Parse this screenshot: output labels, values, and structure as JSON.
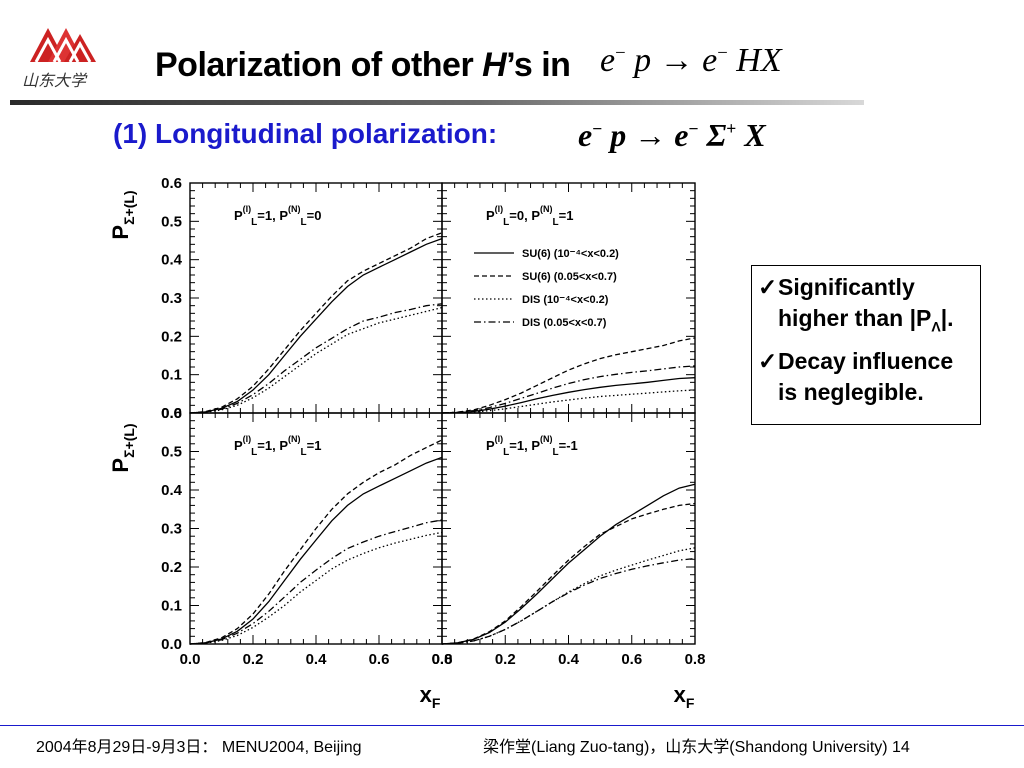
{
  "header": {
    "title_prefix": "Polarization of other ",
    "title_italic": "H",
    "title_suffix": "’s  in",
    "reaction_main": {
      "lhs": "e",
      "lhs_sup": "−",
      "p": " p → e",
      "rhs_sup": "−",
      "rest": " HX"
    },
    "logo_text": "山东大学"
  },
  "subtitle": "(1) Longitudinal polarization:",
  "reaction_sub": {
    "a": "e",
    "a_sup": "−",
    "b": " p → e",
    "b_sup": "−",
    "c": " Σ",
    "c_sup": "+",
    "d": " X"
  },
  "notes": [
    {
      "check": "✓",
      "text": "Significantly higher than |P",
      "sub": "Λ",
      "after": "|."
    },
    {
      "check": "✓",
      "text": "Decay influence is neglegible.",
      "sub": "",
      "after": ""
    }
  ],
  "footer": {
    "left": "2004年8月29日-9月3日：  MENU2004, Beijing",
    "right": "梁作堂(Liang Zuo-tang)，山东大学(Shandong University) 14"
  },
  "colors": {
    "subtitle": "#1a1acc",
    "footer_rule": "#1a1acc",
    "logo_red": "#cc2222"
  },
  "chart_data": {
    "type": "line",
    "ylabel": "P",
    "ylabel_sub": "Σ+(L)",
    "xlabel": "x",
    "xlabel_sub": "F",
    "ylim": [
      0,
      0.6
    ],
    "yticks": [
      "0.0",
      "0.1",
      "0.2",
      "0.3",
      "0.4",
      "0.5",
      "0.6"
    ],
    "xlim": [
      0,
      0.8
    ],
    "xticks": [
      "0.0",
      "0.2",
      "0.4",
      "0.6",
      "0.8"
    ],
    "x": [
      0.0,
      0.05,
      0.1,
      0.15,
      0.2,
      0.25,
      0.3,
      0.35,
      0.4,
      0.45,
      0.5,
      0.55,
      0.6,
      0.65,
      0.7,
      0.75,
      0.8
    ],
    "legend": [
      {
        "name": "SU(6) (10⁻⁴<x<0.2)",
        "style": "solid"
      },
      {
        "name": "SU(6) (0.05<x<0.7)",
        "style": "dashed"
      },
      {
        "name": "DIS   (10⁻⁴<x<0.2)",
        "style": "dotted"
      },
      {
        "name": "DIS  (0.05<x<0.7)",
        "style": "dashdot"
      }
    ],
    "panels": [
      {
        "label": "P(l)L=1, P(N)L=0",
        "label_html": [
          "P",
          "(l)",
          "L",
          "=1, P",
          "(N)",
          "L",
          "=0"
        ],
        "series": [
          {
            "style": "solid",
            "values": [
              0.0,
              0.003,
              0.012,
              0.03,
              0.06,
              0.1,
              0.15,
              0.2,
              0.245,
              0.29,
              0.33,
              0.36,
              0.38,
              0.4,
              0.42,
              0.44,
              0.455
            ]
          },
          {
            "style": "dashed",
            "values": [
              0.0,
              0.004,
              0.015,
              0.037,
              0.07,
              0.115,
              0.165,
              0.215,
              0.26,
              0.305,
              0.345,
              0.37,
              0.39,
              0.41,
              0.43,
              0.455,
              0.47
            ]
          },
          {
            "style": "dotted",
            "values": [
              0.0,
              0.002,
              0.008,
              0.02,
              0.04,
              0.065,
              0.095,
              0.125,
              0.155,
              0.18,
              0.205,
              0.22,
              0.235,
              0.245,
              0.255,
              0.265,
              0.275
            ]
          },
          {
            "style": "dashdot",
            "values": [
              0.0,
              0.003,
              0.01,
              0.025,
              0.048,
              0.077,
              0.11,
              0.14,
              0.17,
              0.195,
              0.22,
              0.24,
              0.25,
              0.262,
              0.27,
              0.28,
              0.285
            ]
          }
        ]
      },
      {
        "label": "P(l)L=0, P(N)L=1",
        "label_html": [
          "P",
          "(l)",
          "L",
          "=0, P",
          "(N)",
          "L",
          "=1"
        ],
        "series": [
          {
            "style": "solid",
            "values": [
              0.0,
              0.001,
              0.004,
              0.01,
              0.018,
              0.027,
              0.037,
              0.046,
              0.054,
              0.061,
              0.067,
              0.072,
              0.076,
              0.08,
              0.085,
              0.09,
              0.092
            ]
          },
          {
            "style": "dashed",
            "values": [
              0.0,
              0.002,
              0.008,
              0.02,
              0.035,
              0.052,
              0.072,
              0.092,
              0.112,
              0.128,
              0.142,
              0.152,
              0.16,
              0.168,
              0.176,
              0.188,
              0.196
            ]
          },
          {
            "style": "dotted",
            "values": [
              0.0,
              0.001,
              0.002,
              0.006,
              0.011,
              0.017,
              0.023,
              0.029,
              0.034,
              0.039,
              0.043,
              0.046,
              0.049,
              0.052,
              0.055,
              0.058,
              0.06
            ]
          },
          {
            "style": "dashdot",
            "values": [
              0.0,
              0.002,
              0.006,
              0.014,
              0.025,
              0.038,
              0.051,
              0.065,
              0.077,
              0.087,
              0.095,
              0.101,
              0.106,
              0.11,
              0.115,
              0.12,
              0.123
            ]
          }
        ]
      },
      {
        "label": "P(l)L=1, P(N)L=1",
        "label_html": [
          "P",
          "(l)",
          "L",
          "=1, P",
          "(N)",
          "L",
          "=1"
        ],
        "series": [
          {
            "style": "solid",
            "values": [
              0.0,
              0.003,
              0.013,
              0.033,
              0.065,
              0.11,
              0.165,
              0.22,
              0.27,
              0.32,
              0.36,
              0.39,
              0.41,
              0.43,
              0.45,
              0.47,
              0.485
            ]
          },
          {
            "style": "dashed",
            "values": [
              0.0,
              0.004,
              0.016,
              0.04,
              0.078,
              0.13,
              0.19,
              0.245,
              0.3,
              0.35,
              0.39,
              0.42,
              0.445,
              0.465,
              0.49,
              0.51,
              0.53
            ]
          },
          {
            "style": "dotted",
            "values": [
              0.0,
              0.002,
              0.009,
              0.022,
              0.043,
              0.07,
              0.1,
              0.135,
              0.165,
              0.195,
              0.218,
              0.235,
              0.25,
              0.262,
              0.272,
              0.282,
              0.29
            ]
          },
          {
            "style": "dashdot",
            "values": [
              0.0,
              0.003,
              0.011,
              0.028,
              0.053,
              0.085,
              0.122,
              0.16,
              0.192,
              0.222,
              0.248,
              0.265,
              0.28,
              0.292,
              0.303,
              0.315,
              0.322
            ]
          }
        ]
      },
      {
        "label": "P(l)L=1, P(N)L=-1",
        "label_html": [
          "P",
          "(l)",
          "L",
          "=1, P",
          "(N)",
          "L",
          "=-1"
        ],
        "series": [
          {
            "style": "solid",
            "values": [
              0.0,
              0.003,
              0.012,
              0.03,
              0.057,
              0.092,
              0.13,
              0.17,
              0.21,
              0.245,
              0.28,
              0.31,
              0.335,
              0.36,
              0.385,
              0.405,
              0.415
            ]
          },
          {
            "style": "dashed",
            "values": [
              0.0,
              0.003,
              0.013,
              0.032,
              0.06,
              0.097,
              0.137,
              0.178,
              0.218,
              0.253,
              0.285,
              0.305,
              0.325,
              0.338,
              0.35,
              0.36,
              0.365
            ]
          },
          {
            "style": "dotted",
            "values": [
              0.0,
              0.002,
              0.008,
              0.02,
              0.038,
              0.06,
              0.085,
              0.11,
              0.135,
              0.157,
              0.177,
              0.192,
              0.205,
              0.218,
              0.23,
              0.242,
              0.25
            ]
          },
          {
            "style": "dashdot",
            "values": [
              0.0,
              0.002,
              0.008,
              0.02,
              0.038,
              0.06,
              0.085,
              0.11,
              0.133,
              0.153,
              0.17,
              0.183,
              0.194,
              0.203,
              0.211,
              0.218,
              0.222
            ]
          }
        ]
      }
    ]
  }
}
